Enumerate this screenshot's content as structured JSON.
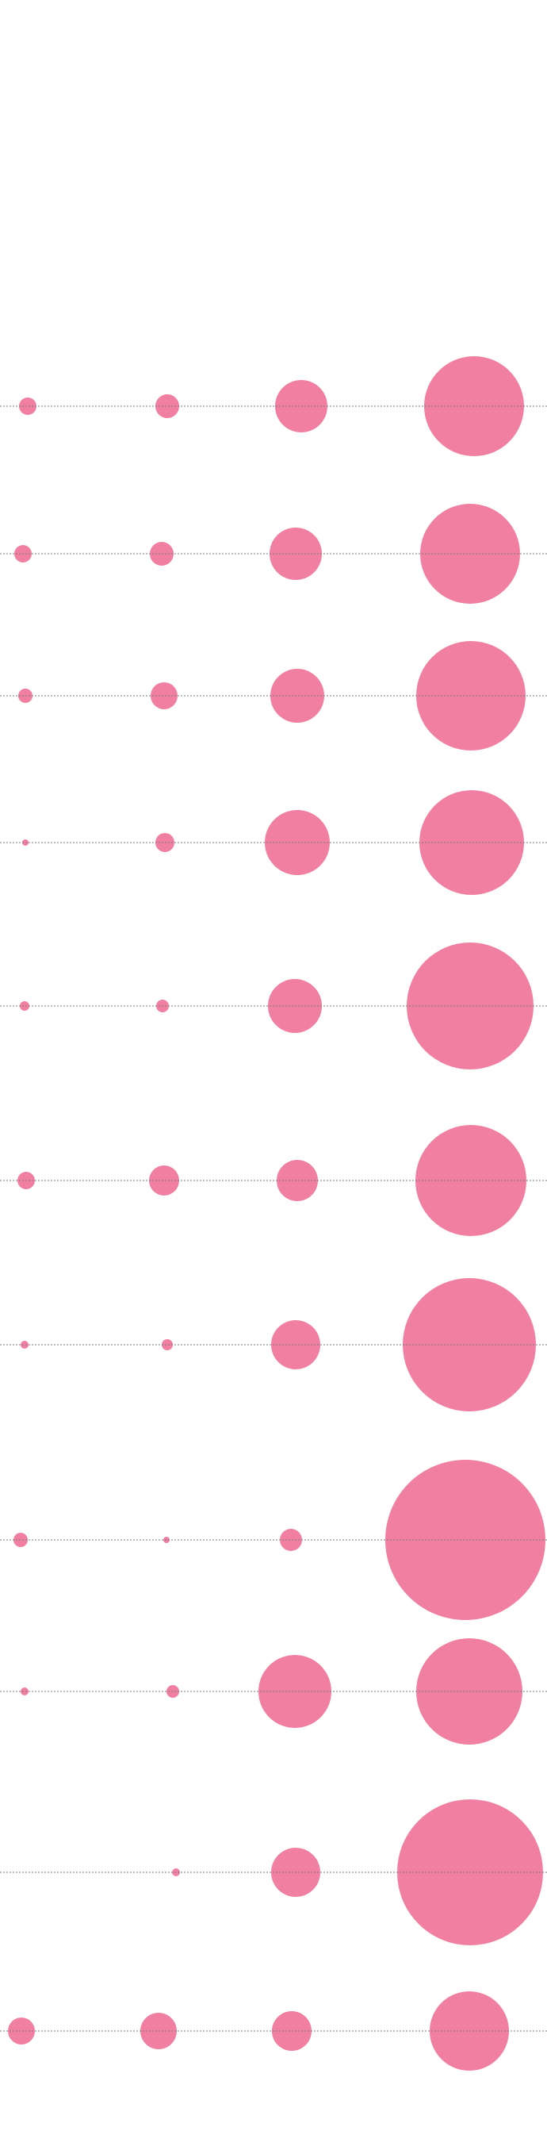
{
  "chart_data": {
    "type": "bubble",
    "title": "",
    "xlabel": "",
    "ylabel": "",
    "grid": false,
    "legend": "none",
    "colors": {
      "bubble": "#f07fa1",
      "guide_line": "#7a7a7a",
      "background": "#ffffff"
    },
    "columns": 4,
    "size_encoding": "radius",
    "rows": [
      {
        "values": [
          11,
          15,
          33,
          63
        ]
      },
      {
        "values": [
          11,
          15,
          33,
          63
        ]
      },
      {
        "values": [
          9,
          17,
          34,
          69
        ]
      },
      {
        "values": [
          4,
          12,
          41,
          66
        ]
      },
      {
        "values": [
          6,
          8,
          34,
          80
        ]
      },
      {
        "values": [
          11,
          19,
          26,
          70
        ]
      },
      {
        "values": [
          5,
          7,
          31,
          84
        ]
      },
      {
        "values": [
          9,
          4,
          14,
          101
        ]
      },
      {
        "values": [
          5,
          8,
          46,
          67
        ]
      },
      {
        "values": [
          0,
          5,
          31,
          92
        ]
      },
      {
        "values": [
          17,
          23,
          25,
          50
        ]
      }
    ]
  }
}
